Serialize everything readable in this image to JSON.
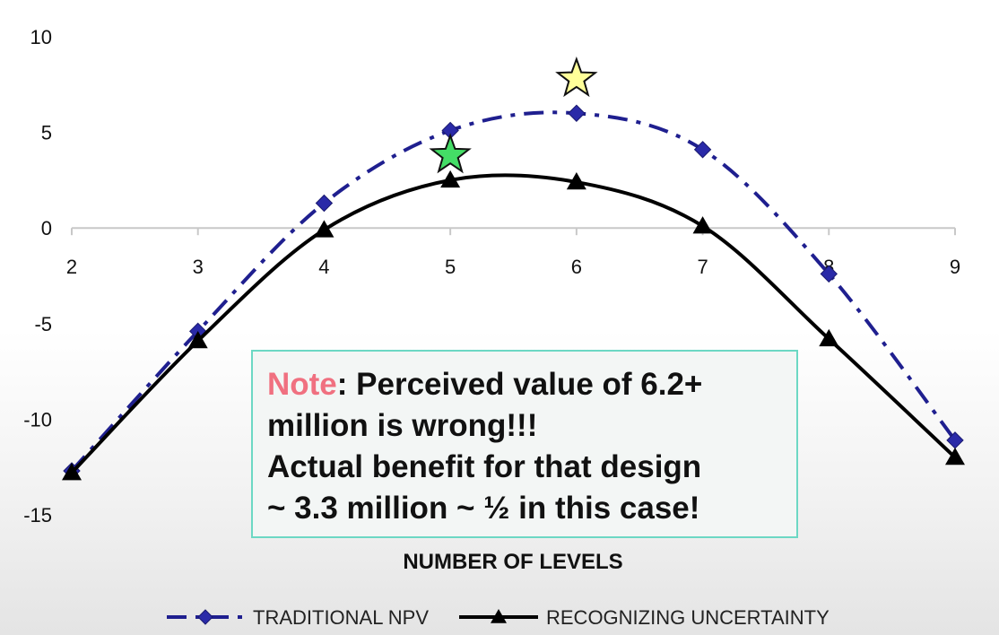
{
  "chart_data": {
    "type": "line",
    "xlabel": "NUMBER OF LEVELS",
    "ylabel": "",
    "x": [
      2,
      3,
      4,
      5,
      6,
      7,
      8,
      9
    ],
    "xlim": [
      2,
      9
    ],
    "ylim": [
      -15,
      10
    ],
    "yticks": [
      10,
      5,
      0,
      -5,
      -10,
      -15
    ],
    "xticks": [
      2,
      3,
      4,
      5,
      6,
      7,
      8,
      9
    ],
    "grid": false,
    "legend_position": "bottom",
    "series": [
      {
        "name": "TRADITIONAL NPV",
        "values": [
          -12.7,
          -5.4,
          1.3,
          5.1,
          6.0,
          4.1,
          -2.4,
          -11.1
        ],
        "color": "#1f1f8f",
        "line_style": "dash-dot",
        "marker": "diamond"
      },
      {
        "name": "RECOGNIZING UNCERTAINTY",
        "values": [
          -12.8,
          -5.9,
          -0.1,
          2.5,
          2.4,
          0.1,
          -5.8,
          -12.0
        ],
        "color": "#000000",
        "line_style": "solid",
        "marker": "triangle"
      }
    ],
    "annotations": [
      {
        "type": "star-marker",
        "x": 6,
        "y": 7.8,
        "color": "#ffff99"
      },
      {
        "type": "star-marker",
        "x": 5,
        "y": 3.8,
        "color": "#44dd66"
      }
    ]
  },
  "note": {
    "label": "Note",
    "line1_rest": ":  Perceived value of 6.2+",
    "line2": "million is wrong!!!",
    "line3": "Actual benefit for that design",
    "line4": "~ 3.3 million ~ ½ in this case!"
  }
}
